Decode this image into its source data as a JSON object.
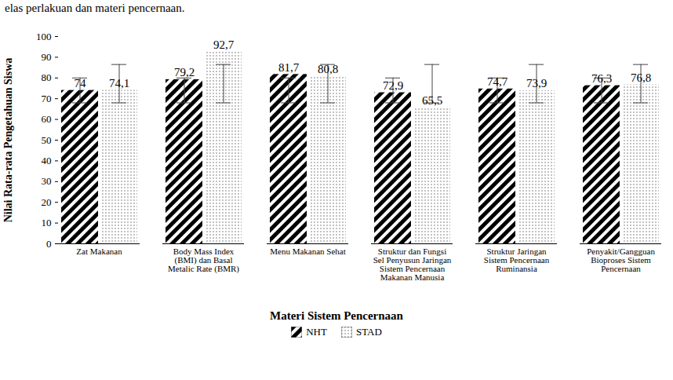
{
  "chart_data": {
    "type": "bar",
    "title": "elas perlakuan dan materi pencernaan.",
    "x_label": "Materi Sistem Pencernaan",
    "y_label": "Nilai Rata-rata Pengetahuan Siswa",
    "categories": [
      "Zat Makanan",
      "Body Mass Index (BMI) dan Basal Metalic Rate (BMR)",
      "Menu Makanan Sehat",
      "Struktur dan Fungsi Sel Penyusun Jaringan Sistem Pencernaan Makanan Manusia",
      "Struktur Jaringan Sistem Pencernaan Ruminansia",
      "Penyakit/Gangguan Bioproses Sistem Pencernaan"
    ],
    "series": [
      {
        "name": "NHT",
        "color": "#000000",
        "values": [
          74,
          79.2,
          81.7,
          72.9,
          74.7,
          76.3
        ],
        "value_labels": [
          "74",
          "79,2",
          "81,7",
          "72,9",
          "74,7",
          "76,3"
        ],
        "error_low": [
          68,
          68,
          68,
          68,
          68,
          68
        ],
        "error_high": [
          80,
          80,
          80,
          80,
          80,
          80
        ]
      },
      {
        "name": "STAD",
        "color": "#a6a6a6",
        "values": [
          74.1,
          92.7,
          80.8,
          65.5,
          73.9,
          76.8
        ],
        "value_labels": [
          "74,1",
          "92,7",
          "80,8",
          "65,5",
          "73,9",
          "76,8"
        ],
        "error_low": [
          68,
          68,
          68,
          68,
          68,
          68
        ],
        "error_high": [
          86.5,
          86.5,
          86.5,
          86.5,
          86.5,
          86.5
        ]
      }
    ],
    "ylim": [
      0,
      100
    ],
    "yticks": [
      0,
      10,
      20,
      30,
      40,
      50,
      60,
      70,
      80,
      90,
      100
    ],
    "grid": false,
    "data_labels": true,
    "legend": "bottom"
  }
}
